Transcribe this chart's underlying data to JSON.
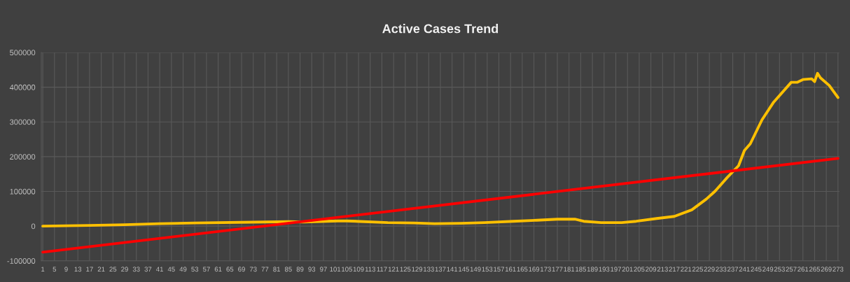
{
  "chart_data": {
    "type": "line",
    "title": "Active Cases Trend",
    "xlim": [
      0.5,
      273.5
    ],
    "xticks": [
      1,
      5,
      9,
      13,
      17,
      21,
      25,
      29,
      33,
      37,
      41,
      45,
      49,
      53,
      57,
      61,
      65,
      69,
      73,
      77,
      81,
      85,
      89,
      93,
      97,
      101,
      105,
      109,
      113,
      117,
      121,
      125,
      129,
      133,
      137,
      141,
      145,
      149,
      153,
      157,
      161,
      165,
      169,
      173,
      177,
      181,
      185,
      189,
      193,
      197,
      201,
      205,
      209,
      213,
      217,
      221,
      225,
      229,
      233,
      237,
      241,
      245,
      249,
      253,
      257,
      261,
      265,
      269,
      273
    ],
    "ylim": [
      -100000,
      500000
    ],
    "yticks": [
      -100000,
      0,
      100000,
      200000,
      300000,
      400000,
      500000
    ],
    "grid": true,
    "marker": "none",
    "line_style": "solid",
    "series": [
      {
        "color": "#ffc000",
        "x": [
          1,
          17,
          29,
          41,
          53,
          77,
          85,
          90,
          102,
          105,
          119,
          128,
          135,
          144,
          152,
          162,
          170,
          177,
          183,
          186,
          192,
          199,
          204,
          211,
          217,
          223,
          228,
          231,
          235,
          239,
          241,
          243,
          247,
          251,
          257,
          259,
          261,
          264,
          265,
          266,
          267,
          270,
          273
        ],
        "values": [
          0,
          2000,
          4000,
          7000,
          9000,
          12000,
          13000,
          12000,
          15000,
          15000,
          10000,
          9000,
          7000,
          8000,
          10000,
          14000,
          17000,
          20000,
          20000,
          14000,
          10000,
          10000,
          14000,
          22000,
          28000,
          47000,
          78000,
          101000,
          139000,
          174000,
          218000,
          237000,
          306000,
          357000,
          414000,
          414000,
          422000,
          424000,
          416000,
          440000,
          427000,
          405000,
          370000
        ]
      },
      {
        "color": "#ff0000",
        "x": [
          1,
          273
        ],
        "values": [
          -75000,
          195000
        ]
      }
    ]
  }
}
